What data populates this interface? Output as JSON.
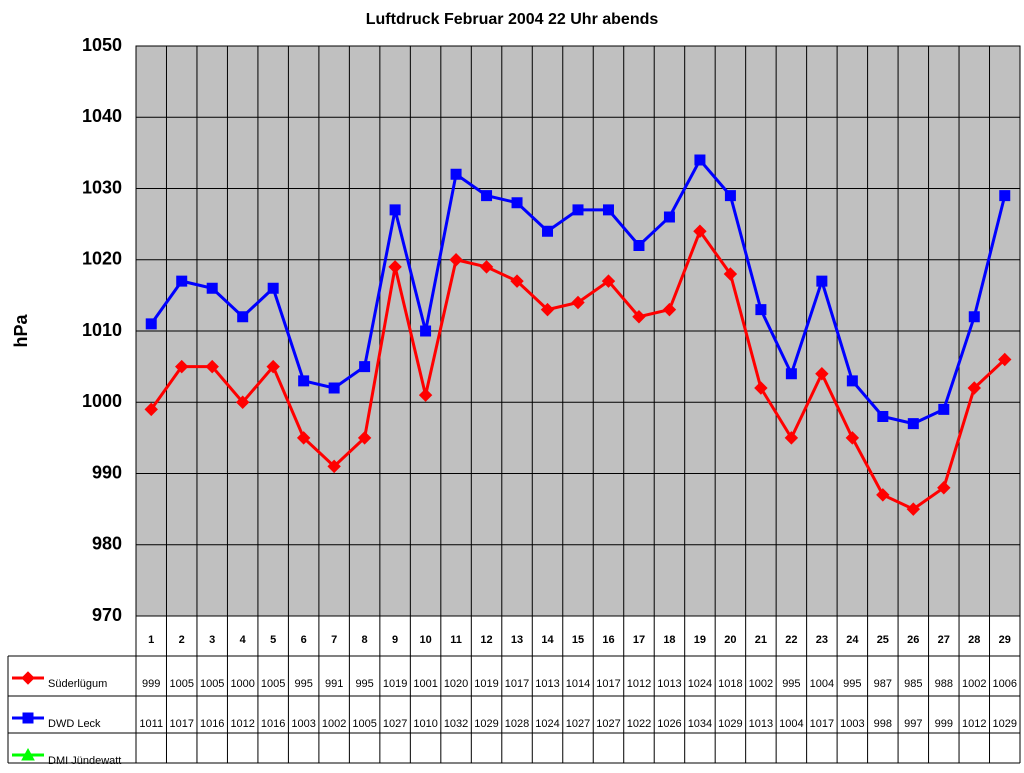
{
  "chart_data": {
    "type": "line",
    "title": "Luftdruck Februar 2004 22 Uhr abends",
    "y_label": "hPa",
    "categories": [
      "1",
      "2",
      "3",
      "4",
      "5",
      "6",
      "7",
      "8",
      "9",
      "10",
      "11",
      "12",
      "13",
      "14",
      "15",
      "16",
      "17",
      "18",
      "19",
      "20",
      "21",
      "22",
      "23",
      "24",
      "25",
      "26",
      "27",
      "28",
      "29"
    ],
    "series": [
      {
        "name": "Süderlügum",
        "color": "#ff0000",
        "marker": "diamond",
        "values": [
          999,
          1005,
          1005,
          1000,
          1005,
          995,
          991,
          995,
          1019,
          1001,
          1020,
          1019,
          1017,
          1013,
          1014,
          1017,
          1012,
          1013,
          1024,
          1018,
          1002,
          995,
          1004,
          995,
          987,
          985,
          988,
          1002,
          1006
        ]
      },
      {
        "name": "DWD Leck",
        "color": "#0000ff",
        "marker": "square",
        "values": [
          1011,
          1017,
          1016,
          1012,
          1016,
          1003,
          1002,
          1005,
          1027,
          1010,
          1032,
          1029,
          1028,
          1024,
          1027,
          1027,
          1022,
          1026,
          1034,
          1029,
          1013,
          1004,
          1017,
          1003,
          998,
          997,
          999,
          1012,
          1029
        ]
      },
      {
        "name": "DMI Jündewatt",
        "color": "#00ff00",
        "marker": "triangle",
        "values": [
          null,
          null,
          null,
          null,
          null,
          null,
          null,
          null,
          null,
          null,
          null,
          null,
          null,
          null,
          null,
          null,
          null,
          null,
          null,
          null,
          null,
          null,
          null,
          null,
          null,
          null,
          null,
          null,
          null
        ]
      }
    ],
    "ylim": [
      970,
      1050
    ],
    "yticks": [
      970,
      980,
      990,
      1000,
      1010,
      1020,
      1030,
      1040,
      1050
    ],
    "grid": true,
    "data_table": true
  }
}
